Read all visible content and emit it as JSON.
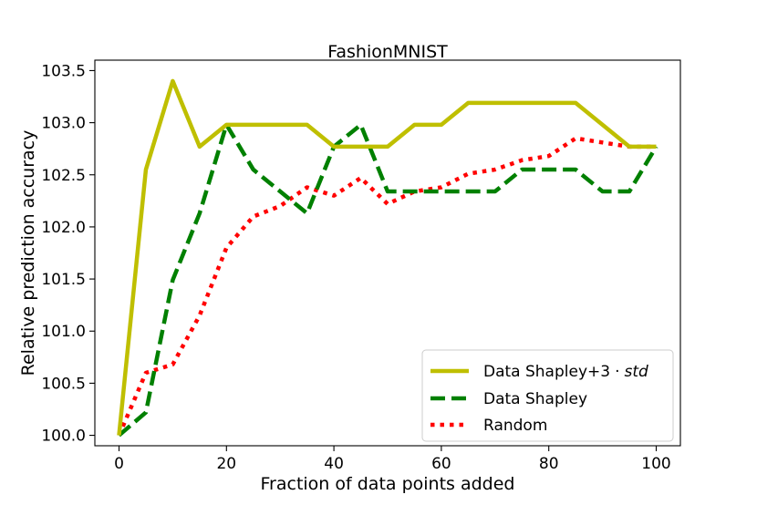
{
  "chart_data": {
    "type": "line",
    "title": "FashionMNIST",
    "xlabel": "Fraction of data points added",
    "ylabel": "Relative prediction accuracy",
    "xlim": [
      -4.5,
      104.5
    ],
    "ylim": [
      99.9,
      103.6
    ],
    "x_ticks": [
      0,
      20,
      40,
      60,
      80,
      100
    ],
    "y_ticks": [
      100.0,
      100.5,
      101.0,
      101.5,
      102.0,
      102.5,
      103.0,
      103.5
    ],
    "x_tick_labels": [
      "0",
      "20",
      "40",
      "60",
      "80",
      "100"
    ],
    "y_tick_labels": [
      "100.0",
      "100.5",
      "101.0",
      "101.5",
      "102.0",
      "102.5",
      "103.0",
      "103.5"
    ],
    "grid": false,
    "legend_position": "lower-right",
    "x": [
      0,
      5,
      10,
      15,
      20,
      25,
      30,
      35,
      40,
      45,
      50,
      55,
      60,
      65,
      70,
      75,
      80,
      85,
      90,
      95,
      100
    ],
    "series": [
      {
        "name": "Data Shapley+3",
        "name_operator": "·",
        "name_suffix": "std",
        "color": "#bfbf00",
        "style": "solid",
        "values": [
          100.0,
          102.55,
          103.4,
          102.77,
          102.98,
          102.98,
          102.98,
          102.98,
          102.77,
          102.77,
          102.77,
          102.98,
          102.98,
          103.19,
          103.19,
          103.19,
          103.19,
          103.19,
          102.98,
          102.77,
          102.77
        ]
      },
      {
        "name": "Data Shapley",
        "color": "#008000",
        "style": "dashed",
        "values": [
          100.0,
          100.22,
          101.49,
          102.13,
          102.98,
          102.55,
          102.34,
          102.13,
          102.77,
          102.98,
          102.34,
          102.34,
          102.34,
          102.34,
          102.34,
          102.55,
          102.55,
          102.55,
          102.34,
          102.34,
          102.77
        ]
      },
      {
        "name": "Random",
        "color": "#ff0000",
        "style": "dotted",
        "values": [
          100.0,
          100.6,
          100.68,
          101.15,
          101.8,
          102.1,
          102.2,
          102.38,
          102.3,
          102.47,
          102.22,
          102.34,
          102.38,
          102.51,
          102.55,
          102.64,
          102.68,
          102.85,
          102.81,
          102.77,
          102.77
        ]
      }
    ]
  }
}
